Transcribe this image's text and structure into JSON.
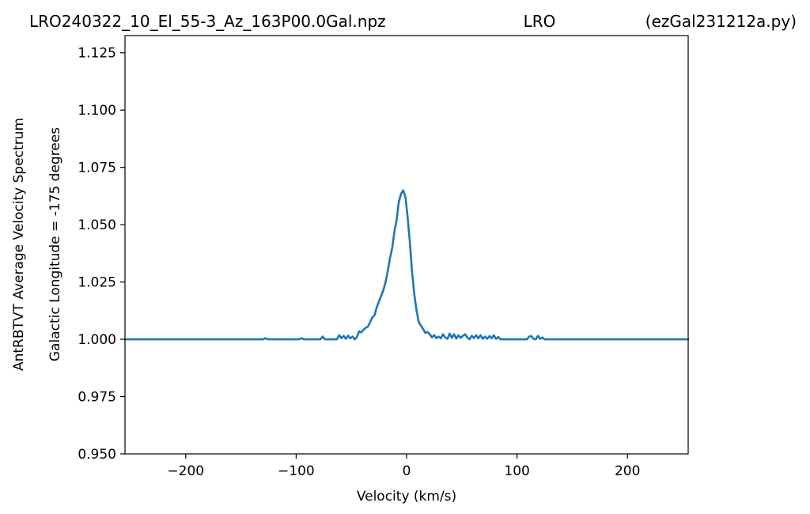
{
  "header": {
    "left": "LRO240322_10_El_55-3_Az_163P00.0Gal.npz",
    "center": "LRO",
    "right": "(ezGal231212a.py)"
  },
  "colors": {
    "line": "#1f77b4",
    "axes": "#000000",
    "background": "#ffffff"
  },
  "chart_data": {
    "type": "line",
    "title": "",
    "xlabel": "Velocity (km/s)",
    "ylabel": "AntRBTVT Average Velocity Spectrum",
    "ylabel2": "Galactic Longitude = -175 degrees",
    "xlim": [
      -255,
      255
    ],
    "ylim": [
      0.95,
      1.1325
    ],
    "xticks": [
      -200,
      -100,
      0,
      100,
      200
    ],
    "xtick_labels": [
      "−200",
      "−100",
      "0",
      "100",
      "200"
    ],
    "yticks": [
      0.95,
      0.975,
      1.0,
      1.025,
      1.05,
      1.075,
      1.1,
      1.125
    ],
    "ytick_labels": [
      "0.950",
      "0.975",
      "1.000",
      "1.025",
      "1.050",
      "1.075",
      "1.100",
      "1.125"
    ],
    "grid": false,
    "series": [
      {
        "x": [
          -255,
          -130,
          -128,
          -126,
          -97,
          -95,
          -93,
          -78,
          -76,
          -74,
          -63,
          -61,
          -59,
          -57,
          -55,
          -53,
          -51,
          -49,
          -47,
          -45,
          -43,
          -41,
          -39,
          -37,
          -35,
          -33,
          -31,
          -29,
          -27,
          -25,
          -23,
          -21,
          -19,
          -17,
          -15,
          -13,
          -11,
          -9,
          -7,
          -5,
          -3,
          -1,
          1,
          3,
          5,
          7,
          9,
          11,
          13,
          15,
          17,
          19,
          21,
          23,
          25,
          27,
          29,
          31,
          33,
          35,
          37,
          39,
          41,
          43,
          45,
          47,
          49,
          51,
          53,
          55,
          57,
          59,
          61,
          63,
          65,
          67,
          69,
          71,
          73,
          75,
          77,
          79,
          81,
          83,
          85,
          87,
          89,
          91,
          93,
          95,
          97,
          99,
          101,
          109,
          111,
          113,
          115,
          117,
          119,
          121,
          123,
          125,
          255
        ],
        "y": [
          1.0,
          1.0,
          1.0005,
          1.0,
          1.0,
          1.0005,
          1.0,
          1.0,
          1.0012,
          1.0,
          1.0,
          1.0018,
          1.0005,
          1.0015,
          1.0002,
          1.0016,
          1.0004,
          1.0012,
          1.0,
          1.001,
          1.0035,
          1.003,
          1.0042,
          1.005,
          1.0055,
          1.0075,
          1.0095,
          1.0105,
          1.014,
          1.0165,
          1.019,
          1.0215,
          1.025,
          1.03,
          1.0355,
          1.04,
          1.047,
          1.052,
          1.06,
          1.0635,
          1.065,
          1.062,
          1.053,
          1.042,
          1.029,
          1.0195,
          1.0125,
          1.0075,
          1.006,
          1.0045,
          1.0028,
          1.0032,
          1.0022,
          1.0008,
          1.0018,
          1.0005,
          1.0012,
          1.0004,
          1.0022,
          1.0008,
          1.0002,
          1.0025,
          1.0006,
          1.0022,
          1.0003,
          1.0018,
          1.0006,
          1.0015,
          1.0022,
          1.0008,
          1.0,
          1.0015,
          1.0005,
          1.0018,
          1.0004,
          1.0018,
          1.0002,
          1.0012,
          1.0002,
          1.0014,
          1.0004,
          1.0018,
          1.0002,
          1.001,
          1.0,
          1.0,
          1.0,
          1.0,
          1.0,
          1.0,
          1.0,
          1.0,
          1.0,
          1.0,
          1.0012,
          1.0014,
          1.0002,
          1.0,
          1.0015,
          1.0002,
          1.0008,
          1.0,
          1.0
        ]
      }
    ]
  }
}
